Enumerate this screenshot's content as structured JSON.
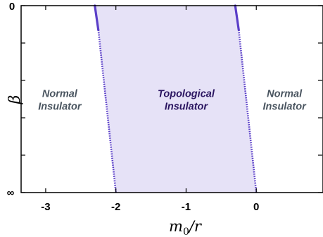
{
  "chart_data": {
    "type": "area",
    "title": "",
    "xlabel": "m_0/r",
    "ylabel": "β",
    "xlim": [
      -3.35,
      0.95
    ],
    "x_ticks": [
      -3,
      -2,
      -1,
      0
    ],
    "x_tick_labels": [
      "-3",
      "-2",
      "-1",
      "0"
    ],
    "y_tick_labels": [
      "0",
      "∞"
    ],
    "y_tick_fractions": [
      0,
      0.2,
      0.4,
      0.6,
      0.8,
      1.0
    ],
    "grid": false,
    "legend": "none",
    "series": [
      {
        "name": "left boundary",
        "solid_segment": [
          [
            -2.3,
            0.0
          ],
          [
            -2.25,
            0.13
          ]
        ],
        "dotted_segment": [
          [
            -2.25,
            0.13
          ],
          [
            -2.0,
            1.0
          ]
        ]
      },
      {
        "name": "right boundary",
        "solid_segment": [
          [
            -0.3,
            0.0
          ],
          [
            -0.25,
            0.13
          ]
        ],
        "dotted_segment": [
          [
            -0.25,
            0.13
          ],
          [
            0.0,
            1.0
          ]
        ]
      }
    ],
    "regions": [
      {
        "lines": [
          "Normal",
          "Insulator"
        ],
        "x": -2.8,
        "y": 0.5,
        "color": "#4a5560"
      },
      {
        "lines": [
          "Topological",
          "Insulator"
        ],
        "x": -1.0,
        "y": 0.5,
        "color": "#2a1560"
      },
      {
        "lines": [
          "Normal",
          "Insulator"
        ],
        "x": 0.4,
        "y": 0.5,
        "color": "#4a5560"
      }
    ],
    "colors": {
      "fill": "#e6e2f7",
      "boundary": "#5a3ec8"
    }
  }
}
